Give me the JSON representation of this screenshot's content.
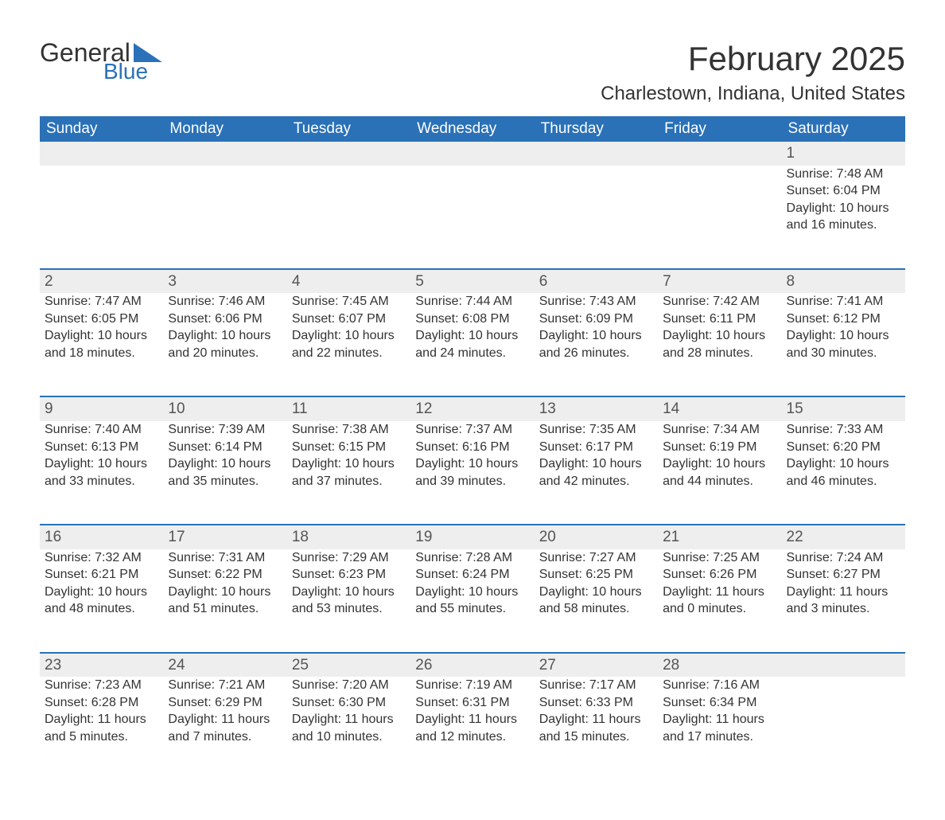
{
  "brand": {
    "word1": "General",
    "word2": "Blue"
  },
  "title": "February 2025",
  "location": "Charlestown, Indiana, United States",
  "colors": {
    "header_bg": "#2a71b8",
    "header_text": "#ffffff",
    "daynum_bg": "#eeeeee",
    "daynum_border": "#2a71b8",
    "text": "#333333",
    "page_bg": "#ffffff"
  },
  "weekdays": [
    "Sunday",
    "Monday",
    "Tuesday",
    "Wednesday",
    "Thursday",
    "Friday",
    "Saturday"
  ],
  "labels": {
    "sunrise": "Sunrise: ",
    "sunset": "Sunset: ",
    "daylight": "Daylight: "
  },
  "weeks": [
    [
      null,
      null,
      null,
      null,
      null,
      null,
      {
        "n": "1",
        "sunrise": "7:48 AM",
        "sunset": "6:04 PM",
        "daylight": "10 hours and 16 minutes."
      }
    ],
    [
      {
        "n": "2",
        "sunrise": "7:47 AM",
        "sunset": "6:05 PM",
        "daylight": "10 hours and 18 minutes."
      },
      {
        "n": "3",
        "sunrise": "7:46 AM",
        "sunset": "6:06 PM",
        "daylight": "10 hours and 20 minutes."
      },
      {
        "n": "4",
        "sunrise": "7:45 AM",
        "sunset": "6:07 PM",
        "daylight": "10 hours and 22 minutes."
      },
      {
        "n": "5",
        "sunrise": "7:44 AM",
        "sunset": "6:08 PM",
        "daylight": "10 hours and 24 minutes."
      },
      {
        "n": "6",
        "sunrise": "7:43 AM",
        "sunset": "6:09 PM",
        "daylight": "10 hours and 26 minutes."
      },
      {
        "n": "7",
        "sunrise": "7:42 AM",
        "sunset": "6:11 PM",
        "daylight": "10 hours and 28 minutes."
      },
      {
        "n": "8",
        "sunrise": "7:41 AM",
        "sunset": "6:12 PM",
        "daylight": "10 hours and 30 minutes."
      }
    ],
    [
      {
        "n": "9",
        "sunrise": "7:40 AM",
        "sunset": "6:13 PM",
        "daylight": "10 hours and 33 minutes."
      },
      {
        "n": "10",
        "sunrise": "7:39 AM",
        "sunset": "6:14 PM",
        "daylight": "10 hours and 35 minutes."
      },
      {
        "n": "11",
        "sunrise": "7:38 AM",
        "sunset": "6:15 PM",
        "daylight": "10 hours and 37 minutes."
      },
      {
        "n": "12",
        "sunrise": "7:37 AM",
        "sunset": "6:16 PM",
        "daylight": "10 hours and 39 minutes."
      },
      {
        "n": "13",
        "sunrise": "7:35 AM",
        "sunset": "6:17 PM",
        "daylight": "10 hours and 42 minutes."
      },
      {
        "n": "14",
        "sunrise": "7:34 AM",
        "sunset": "6:19 PM",
        "daylight": "10 hours and 44 minutes."
      },
      {
        "n": "15",
        "sunrise": "7:33 AM",
        "sunset": "6:20 PM",
        "daylight": "10 hours and 46 minutes."
      }
    ],
    [
      {
        "n": "16",
        "sunrise": "7:32 AM",
        "sunset": "6:21 PM",
        "daylight": "10 hours and 48 minutes."
      },
      {
        "n": "17",
        "sunrise": "7:31 AM",
        "sunset": "6:22 PM",
        "daylight": "10 hours and 51 minutes."
      },
      {
        "n": "18",
        "sunrise": "7:29 AM",
        "sunset": "6:23 PM",
        "daylight": "10 hours and 53 minutes."
      },
      {
        "n": "19",
        "sunrise": "7:28 AM",
        "sunset": "6:24 PM",
        "daylight": "10 hours and 55 minutes."
      },
      {
        "n": "20",
        "sunrise": "7:27 AM",
        "sunset": "6:25 PM",
        "daylight": "10 hours and 58 minutes."
      },
      {
        "n": "21",
        "sunrise": "7:25 AM",
        "sunset": "6:26 PM",
        "daylight": "11 hours and 0 minutes."
      },
      {
        "n": "22",
        "sunrise": "7:24 AM",
        "sunset": "6:27 PM",
        "daylight": "11 hours and 3 minutes."
      }
    ],
    [
      {
        "n": "23",
        "sunrise": "7:23 AM",
        "sunset": "6:28 PM",
        "daylight": "11 hours and 5 minutes."
      },
      {
        "n": "24",
        "sunrise": "7:21 AM",
        "sunset": "6:29 PM",
        "daylight": "11 hours and 7 minutes."
      },
      {
        "n": "25",
        "sunrise": "7:20 AM",
        "sunset": "6:30 PM",
        "daylight": "11 hours and 10 minutes."
      },
      {
        "n": "26",
        "sunrise": "7:19 AM",
        "sunset": "6:31 PM",
        "daylight": "11 hours and 12 minutes."
      },
      {
        "n": "27",
        "sunrise": "7:17 AM",
        "sunset": "6:33 PM",
        "daylight": "11 hours and 15 minutes."
      },
      {
        "n": "28",
        "sunrise": "7:16 AM",
        "sunset": "6:34 PM",
        "daylight": "11 hours and 17 minutes."
      },
      null
    ]
  ]
}
